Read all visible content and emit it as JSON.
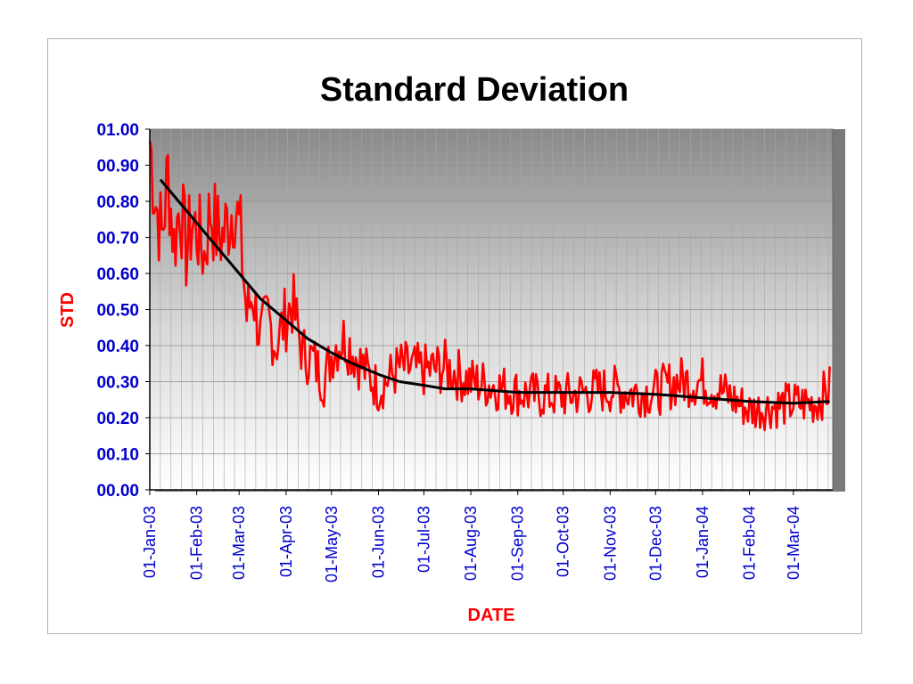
{
  "chart_data": {
    "type": "line",
    "title": "Standard Deviation",
    "xlabel": "DATE",
    "ylabel": "STD",
    "x_tick_labels": [
      "01-Jan-03",
      "01-Feb-03",
      "01-Mar-03",
      "01-Apr-03",
      "01-May-03",
      "01-Jun-03",
      "01-Jul-03",
      "01-Aug-03",
      "01-Sep-03",
      "01-Oct-03",
      "01-Nov-03",
      "01-Dec-03",
      "01-Jan-04",
      "01-Feb-04",
      "01-Mar-04"
    ],
    "y_tick_labels": [
      "00.00",
      "00.10",
      "00.20",
      "00.30",
      "00.40",
      "00.50",
      "00.60",
      "00.70",
      "00.80",
      "00.90",
      "01.00"
    ],
    "xlim": [
      "2003-01-01",
      "2004-03-27"
    ],
    "ylim": [
      0,
      1.0
    ],
    "grid": true,
    "legend": "none",
    "series": [
      {
        "color": "#ff0000",
        "style": "noisy",
        "x": [
          "2003-01-01",
          "2003-01-05",
          "2003-01-09",
          "2003-01-13",
          "2003-01-17",
          "2003-01-21",
          "2003-01-25",
          "2003-01-29",
          "2003-02-02",
          "2003-02-06",
          "2003-02-10",
          "2003-02-14",
          "2003-02-18",
          "2003-02-22",
          "2003-02-26",
          "2003-03-02",
          "2003-03-06",
          "2003-03-10",
          "2003-03-15",
          "2003-03-20",
          "2003-03-25",
          "2003-03-30",
          "2003-04-05",
          "2003-04-12",
          "2003-04-19",
          "2003-04-26",
          "2003-05-03",
          "2003-05-10",
          "2003-05-20",
          "2003-06-01",
          "2003-06-15",
          "2003-07-01",
          "2003-07-15",
          "2003-08-01",
          "2003-08-15",
          "2003-09-01",
          "2003-09-15",
          "2003-10-01",
          "2003-10-15",
          "2003-11-01",
          "2003-11-15",
          "2003-12-01",
          "2003-12-15",
          "2004-01-01",
          "2004-01-15",
          "2004-02-01",
          "2004-02-15",
          "2004-03-01",
          "2004-03-15",
          "2004-03-25"
        ],
        "values": [
          0.97,
          0.8,
          0.7,
          0.88,
          0.68,
          0.8,
          0.66,
          0.74,
          0.71,
          0.65,
          0.78,
          0.72,
          0.7,
          0.75,
          0.8,
          0.7,
          0.48,
          0.55,
          0.42,
          0.48,
          0.4,
          0.46,
          0.52,
          0.38,
          0.36,
          0.3,
          0.4,
          0.42,
          0.35,
          0.28,
          0.34,
          0.33,
          0.34,
          0.3,
          0.29,
          0.27,
          0.26,
          0.26,
          0.27,
          0.28,
          0.27,
          0.27,
          0.3,
          0.3,
          0.27,
          0.22,
          0.23,
          0.24,
          0.24,
          0.28
        ]
      },
      {
        "color": "#000000",
        "style": "smooth",
        "x": [
          "2003-01-08",
          "2003-01-20",
          "2003-02-01",
          "2003-02-15",
          "2003-03-01",
          "2003-03-15",
          "2003-04-01",
          "2003-04-15",
          "2003-05-01",
          "2003-05-15",
          "2003-06-01",
          "2003-06-15",
          "2003-07-01",
          "2003-07-15",
          "2003-08-01",
          "2003-09-01",
          "2003-10-01",
          "2003-11-01",
          "2003-12-01",
          "2004-01-01",
          "2004-02-01",
          "2004-03-01",
          "2004-03-25"
        ],
        "values": [
          0.86,
          0.8,
          0.74,
          0.67,
          0.6,
          0.53,
          0.47,
          0.42,
          0.38,
          0.35,
          0.32,
          0.3,
          0.29,
          0.28,
          0.28,
          0.27,
          0.27,
          0.27,
          0.265,
          0.255,
          0.245,
          0.24,
          0.245
        ]
      }
    ]
  }
}
